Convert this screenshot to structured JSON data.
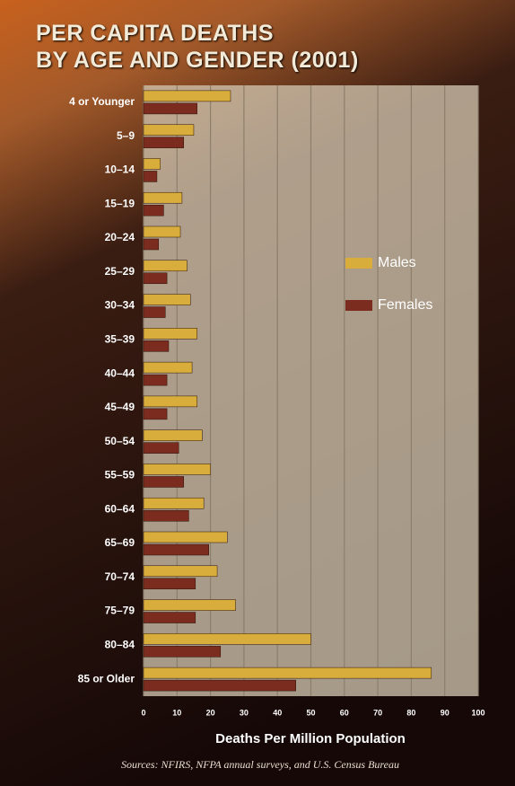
{
  "chart_data": {
    "type": "bar",
    "orientation": "horizontal",
    "title": "PER CAPITA DEATHS\nBY AGE AND GENDER (2001)",
    "categories": [
      "4 or Younger",
      "5–9",
      "10–14",
      "15–19",
      "20–24",
      "25–29",
      "30–34",
      "35–39",
      "40–44",
      "45–49",
      "50–54",
      "55–59",
      "60–64",
      "65–69",
      "70–74",
      "75–79",
      "80–84",
      "85 or Older"
    ],
    "series": [
      {
        "name": "Males",
        "color": "#d9ad3c",
        "values": [
          26,
          15,
          5,
          11.5,
          11,
          13,
          14,
          16,
          14.5,
          16,
          17.5,
          20,
          18,
          25,
          22,
          27.5,
          50,
          86
        ]
      },
      {
        "name": "Females",
        "color": "#7c2c1f",
        "values": [
          16,
          12,
          4,
          6,
          4.5,
          7,
          6.5,
          7.5,
          7,
          7,
          10.5,
          12,
          13.5,
          19.5,
          15.5,
          15.5,
          23,
          45.5
        ]
      }
    ],
    "xlim": [
      0,
      100
    ],
    "xticks": [
      0,
      10,
      20,
      30,
      40,
      50,
      60,
      70,
      80,
      90,
      100
    ],
    "xlabel": "Deaths Per Million Population",
    "source": "Sources: NFIRS, NFPA annual surveys, and U.S. Census Bureau",
    "grid": true,
    "legend": "right"
  }
}
